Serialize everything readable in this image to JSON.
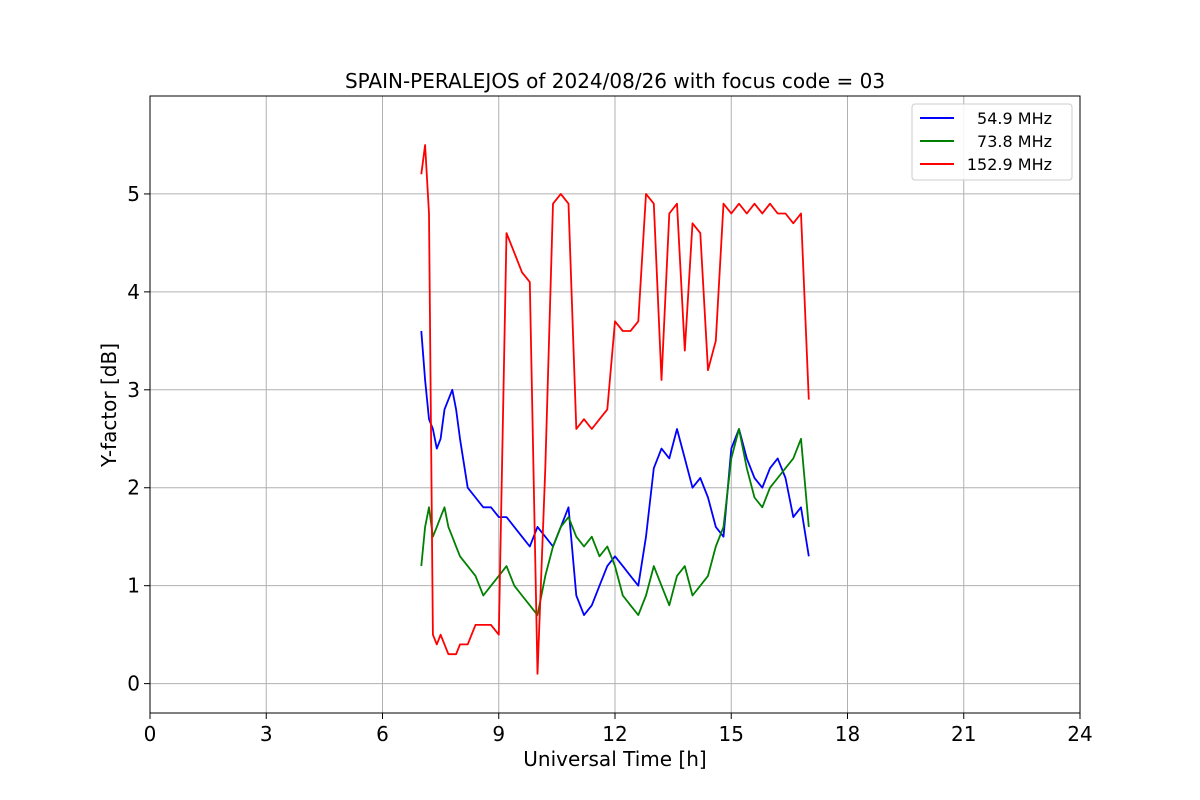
{
  "chart_data": {
    "type": "line",
    "title": "SPAIN-PERALEJOS of 2024/08/26 with focus code = 03",
    "xlabel": "Universal Time [h]",
    "ylabel": "Y-factor [dB]",
    "xlim": [
      0,
      24
    ],
    "ylim": [
      -0.3,
      6.0
    ],
    "xticks": [
      0,
      3,
      6,
      9,
      12,
      15,
      18,
      21,
      24
    ],
    "xtick_labels": [
      "0",
      "3",
      "6",
      "9",
      "12",
      "15",
      "18",
      "21",
      "24"
    ],
    "yticks": [
      0,
      1,
      2,
      3,
      4,
      5
    ],
    "ytick_labels": [
      "0",
      "1",
      "2",
      "3",
      "4",
      "5"
    ],
    "grid": true,
    "legend_position": "top-right",
    "series": [
      {
        "name": "54.9 MHz",
        "color": "#0000ff",
        "x": [
          7.0,
          7.1,
          7.2,
          7.3,
          7.4,
          7.5,
          7.6,
          7.7,
          7.8,
          7.9,
          8.0,
          8.2,
          8.4,
          8.6,
          8.8,
          9.0,
          9.2,
          9.4,
          9.6,
          9.8,
          10.0,
          10.2,
          10.4,
          10.6,
          10.8,
          11.0,
          11.2,
          11.4,
          11.6,
          11.8,
          12.0,
          12.2,
          12.4,
          12.6,
          12.8,
          13.0,
          13.2,
          13.4,
          13.6,
          13.8,
          14.0,
          14.2,
          14.4,
          14.6,
          14.8,
          15.0,
          15.2,
          15.4,
          15.6,
          15.8,
          16.0,
          16.2,
          16.4,
          16.6,
          16.8,
          17.0
        ],
        "y": [
          3.6,
          3.1,
          2.7,
          2.6,
          2.4,
          2.5,
          2.8,
          2.9,
          3.0,
          2.8,
          2.5,
          2.0,
          1.9,
          1.8,
          1.8,
          1.7,
          1.7,
          1.6,
          1.5,
          1.4,
          1.6,
          1.5,
          1.4,
          1.6,
          1.8,
          0.9,
          0.7,
          0.8,
          1.0,
          1.2,
          1.3,
          1.2,
          1.1,
          1.0,
          1.5,
          2.2,
          2.4,
          2.3,
          2.6,
          2.3,
          2.0,
          2.1,
          1.9,
          1.6,
          1.5,
          2.4,
          2.6,
          2.3,
          2.1,
          2.0,
          2.2,
          2.3,
          2.1,
          1.7,
          1.8,
          1.3
        ]
      },
      {
        "name": "73.8 MHz",
        "color": "#008000",
        "x": [
          7.0,
          7.1,
          7.2,
          7.3,
          7.4,
          7.5,
          7.6,
          7.7,
          7.8,
          7.9,
          8.0,
          8.2,
          8.4,
          8.6,
          8.8,
          9.0,
          9.2,
          9.4,
          9.6,
          9.8,
          10.0,
          10.2,
          10.4,
          10.6,
          10.8,
          11.0,
          11.2,
          11.4,
          11.6,
          11.8,
          12.0,
          12.2,
          12.4,
          12.6,
          12.8,
          13.0,
          13.2,
          13.4,
          13.6,
          13.8,
          14.0,
          14.2,
          14.4,
          14.6,
          14.8,
          15.0,
          15.2,
          15.4,
          15.6,
          15.8,
          16.0,
          16.2,
          16.4,
          16.6,
          16.8,
          17.0
        ],
        "y": [
          1.2,
          1.6,
          1.8,
          1.5,
          1.6,
          1.7,
          1.8,
          1.6,
          1.5,
          1.4,
          1.3,
          1.2,
          1.1,
          0.9,
          1.0,
          1.1,
          1.2,
          1.0,
          0.9,
          0.8,
          0.7,
          1.1,
          1.4,
          1.6,
          1.7,
          1.5,
          1.4,
          1.5,
          1.3,
          1.4,
          1.2,
          0.9,
          0.8,
          0.7,
          0.9,
          1.2,
          1.0,
          0.8,
          1.1,
          1.2,
          0.9,
          1.0,
          1.1,
          1.4,
          1.6,
          2.3,
          2.6,
          2.2,
          1.9,
          1.8,
          2.0,
          2.1,
          2.2,
          2.3,
          2.5,
          1.6
        ]
      },
      {
        "name": "152.9 MHz",
        "color": "#ff0000",
        "x": [
          7.0,
          7.1,
          7.2,
          7.3,
          7.4,
          7.5,
          7.6,
          7.7,
          7.8,
          7.9,
          8.0,
          8.2,
          8.4,
          8.6,
          8.8,
          9.0,
          9.2,
          9.4,
          9.6,
          9.8,
          10.0,
          10.2,
          10.4,
          10.6,
          10.8,
          11.0,
          11.2,
          11.4,
          11.6,
          11.8,
          12.0,
          12.2,
          12.4,
          12.6,
          12.8,
          13.0,
          13.2,
          13.4,
          13.6,
          13.8,
          14.0,
          14.2,
          14.4,
          14.6,
          14.8,
          15.0,
          15.2,
          15.4,
          15.6,
          15.8,
          16.0,
          16.2,
          16.4,
          16.6,
          16.8,
          17.0
        ],
        "y": [
          5.2,
          5.5,
          4.8,
          0.5,
          0.4,
          0.5,
          0.4,
          0.3,
          0.3,
          0.3,
          0.4,
          0.4,
          0.6,
          0.6,
          0.6,
          0.5,
          4.6,
          4.4,
          4.2,
          4.1,
          0.1,
          2.2,
          4.9,
          5.0,
          4.9,
          2.6,
          2.7,
          2.6,
          2.7,
          2.8,
          3.7,
          3.6,
          3.6,
          3.7,
          5.0,
          4.9,
          3.1,
          4.8,
          4.9,
          3.4,
          4.7,
          4.6,
          3.2,
          3.5,
          4.9,
          4.8,
          4.9,
          4.8,
          4.9,
          4.8,
          4.9,
          4.8,
          4.8,
          4.7,
          4.8,
          2.9
        ]
      }
    ]
  }
}
